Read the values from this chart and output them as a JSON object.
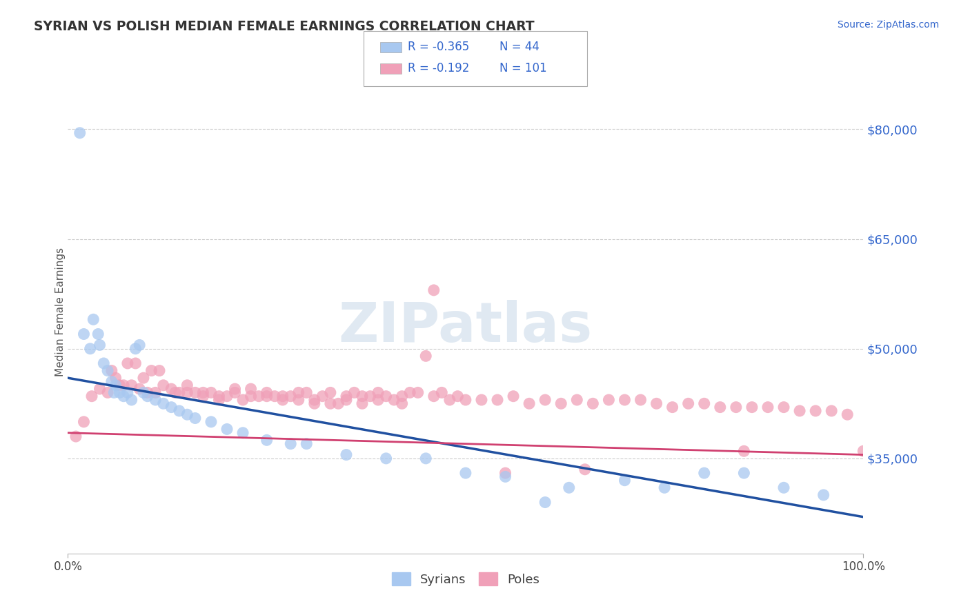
{
  "title": "SYRIAN VS POLISH MEDIAN FEMALE EARNINGS CORRELATION CHART",
  "source": "Source: ZipAtlas.com",
  "ylabel": "Median Female Earnings",
  "xlim": [
    0.0,
    100.0
  ],
  "ylim": [
    22000,
    88000
  ],
  "yticks": [
    35000,
    50000,
    65000,
    80000
  ],
  "ytick_labels": [
    "$35,000",
    "$50,000",
    "$65,000",
    "$80,000"
  ],
  "xtick_labels": [
    "0.0%",
    "100.0%"
  ],
  "syrian_color": "#a8c8f0",
  "pole_color": "#f0a0b8",
  "syrian_line_color": "#2050a0",
  "pole_line_color": "#d04070",
  "background_color": "#ffffff",
  "grid_color": "#cccccc",
  "watermark": "ZIPatlas",
  "legend_r1": "-0.365",
  "legend_n1": "44",
  "legend_r2": "-0.192",
  "legend_n2": "101",
  "syrian_x": [
    1.5,
    2.0,
    2.8,
    3.2,
    3.8,
    4.0,
    4.5,
    5.0,
    5.5,
    5.8,
    6.0,
    6.5,
    7.0,
    7.5,
    8.0,
    8.5,
    9.0,
    9.5,
    10.0,
    11.0,
    12.0,
    13.0,
    14.0,
    15.0,
    16.0,
    18.0,
    20.0,
    22.0,
    25.0,
    28.0,
    30.0,
    35.0,
    40.0,
    45.0,
    50.0,
    55.0,
    60.0,
    63.0,
    70.0,
    75.0,
    80.0,
    85.0,
    90.0,
    95.0
  ],
  "syrian_y": [
    79500,
    52000,
    50000,
    54000,
    52000,
    50500,
    48000,
    47000,
    45500,
    44000,
    45000,
    44000,
    43500,
    44000,
    43000,
    50000,
    50500,
    44000,
    43500,
    43000,
    42500,
    42000,
    41500,
    41000,
    40500,
    40000,
    39000,
    38500,
    37500,
    37000,
    37000,
    35500,
    35000,
    35000,
    33000,
    32500,
    29000,
    31000,
    32000,
    31000,
    33000,
    33000,
    31000,
    30000
  ],
  "pole_x": [
    1.0,
    2.0,
    3.0,
    4.0,
    5.0,
    6.0,
    7.0,
    8.0,
    9.0,
    10.0,
    11.0,
    12.0,
    13.0,
    14.0,
    15.0,
    16.0,
    17.0,
    18.0,
    19.0,
    20.0,
    21.0,
    22.0,
    23.0,
    24.0,
    25.0,
    26.0,
    27.0,
    28.0,
    29.0,
    30.0,
    31.0,
    32.0,
    33.0,
    34.0,
    35.0,
    36.0,
    37.0,
    38.0,
    39.0,
    40.0,
    41.0,
    42.0,
    43.0,
    44.0,
    45.0,
    46.0,
    47.0,
    48.0,
    49.0,
    50.0,
    52.0,
    54.0,
    56.0,
    58.0,
    60.0,
    62.0,
    64.0,
    66.0,
    68.0,
    70.0,
    72.0,
    74.0,
    76.0,
    78.0,
    80.0,
    82.0,
    84.0,
    86.0,
    88.0,
    90.0,
    92.0,
    94.0,
    96.0,
    98.0,
    100.0,
    5.5,
    6.5,
    7.5,
    8.5,
    9.5,
    10.5,
    11.5,
    13.5,
    15.0,
    17.0,
    19.0,
    21.0,
    23.0,
    25.0,
    27.0,
    29.0,
    31.0,
    33.0,
    35.0,
    37.0,
    39.0,
    42.0,
    46.0,
    55.0,
    65.0,
    85.0
  ],
  "pole_y": [
    38000,
    40000,
    43500,
    44500,
    44000,
    46000,
    45000,
    45000,
    44500,
    44000,
    44000,
    45000,
    44500,
    44000,
    45000,
    44000,
    43500,
    44000,
    43000,
    43500,
    44000,
    43000,
    44500,
    43500,
    44000,
    43500,
    43500,
    43500,
    44000,
    44000,
    43000,
    43500,
    44000,
    42500,
    43500,
    44000,
    43500,
    43500,
    44000,
    43500,
    43000,
    43500,
    44000,
    44000,
    49000,
    58000,
    44000,
    43000,
    43500,
    43000,
    43000,
    43000,
    43500,
    42500,
    43000,
    42500,
    43000,
    42500,
    43000,
    43000,
    43000,
    42500,
    42000,
    42500,
    42500,
    42000,
    42000,
    42000,
    42000,
    42000,
    41500,
    41500,
    41500,
    41000,
    36000,
    47000,
    45000,
    48000,
    48000,
    46000,
    47000,
    47000,
    44000,
    44000,
    44000,
    43500,
    44500,
    43500,
    43500,
    43000,
    43000,
    42500,
    42500,
    43000,
    42500,
    43000,
    42500,
    43500,
    33000,
    33500,
    36000
  ]
}
